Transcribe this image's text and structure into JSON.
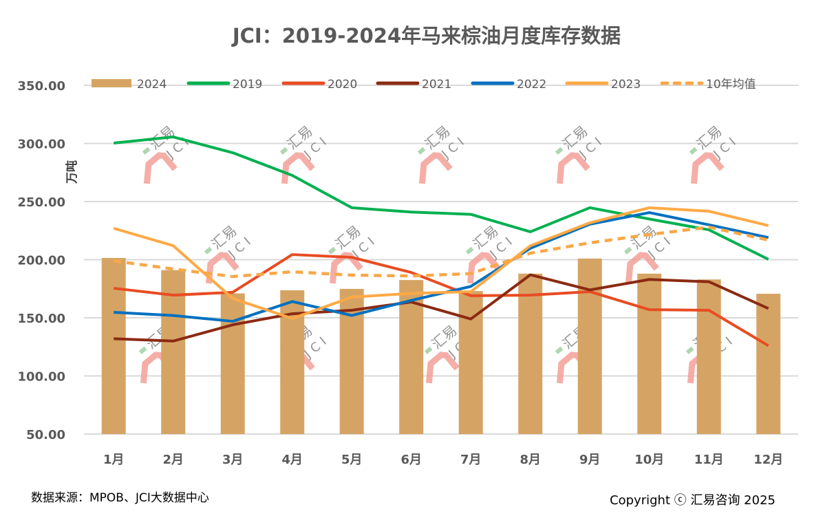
{
  "chart_data": {
    "type": "bar+line",
    "title": "JCI：2019-2024年马来棕油月度库存数据",
    "ylabel": "万吨",
    "xlabel": "",
    "ylim": [
      50,
      350
    ],
    "yticks": [
      "50.00",
      "100.00",
      "150.00",
      "200.00",
      "250.00",
      "300.00",
      "350.00"
    ],
    "ytick_values": [
      50,
      100,
      150,
      200,
      250,
      300,
      350
    ],
    "grid": true,
    "legend_position": "top",
    "categories": [
      "1月",
      "2月",
      "3月",
      "4月",
      "5月",
      "6月",
      "7月",
      "8月",
      "9月",
      "10月",
      "11月",
      "12月"
    ],
    "series": [
      {
        "name": "2024",
        "kind": "bar",
        "color": "#D5A465",
        "values": [
          201.5,
          191,
          171,
          173.7,
          174.9,
          182.5,
          173,
          188,
          201,
          188,
          183,
          170.7
        ]
      },
      {
        "name": "2019",
        "kind": "line",
        "color": "#00B050",
        "values": [
          300.3,
          305.6,
          292,
          272.5,
          244.7,
          241,
          239,
          224,
          244.7,
          235,
          225.7,
          200.3
        ]
      },
      {
        "name": "2020",
        "kind": "line",
        "color": "#E84C22",
        "values": [
          175.4,
          169.5,
          172,
          204.4,
          202,
          189,
          169,
          169.5,
          172.5,
          157,
          156.5,
          126
        ]
      },
      {
        "name": "2021",
        "kind": "line",
        "color": "#8B2A12",
        "values": [
          132,
          130,
          144,
          153.5,
          156.5,
          163.6,
          149,
          187,
          174,
          183,
          181,
          158
        ]
      },
      {
        "name": "2022",
        "kind": "line",
        "color": "#0070C0",
        "values": [
          154.7,
          152,
          147,
          164,
          152,
          165,
          177,
          209.8,
          230.5,
          240.5,
          230,
          219
        ]
      },
      {
        "name": "2023",
        "kind": "line",
        "color": "#FFA945",
        "values": [
          227,
          212,
          166.6,
          149.4,
          167.8,
          171,
          172.5,
          212,
          231.7,
          244.7,
          241.7,
          229.3
        ]
      },
      {
        "name": "10年均值",
        "kind": "dashed",
        "color": "#F8A848",
        "values": [
          199,
          192,
          185.5,
          189.6,
          186.7,
          186,
          188,
          205.6,
          214.5,
          221.6,
          228,
          216.9
        ]
      }
    ]
  },
  "footer": {
    "source": "数据来源：MPOB、JCI大数据中心",
    "copyright": "Copyright ⓒ 汇易咨询 2025"
  },
  "watermark_text": "汇易 JCI"
}
